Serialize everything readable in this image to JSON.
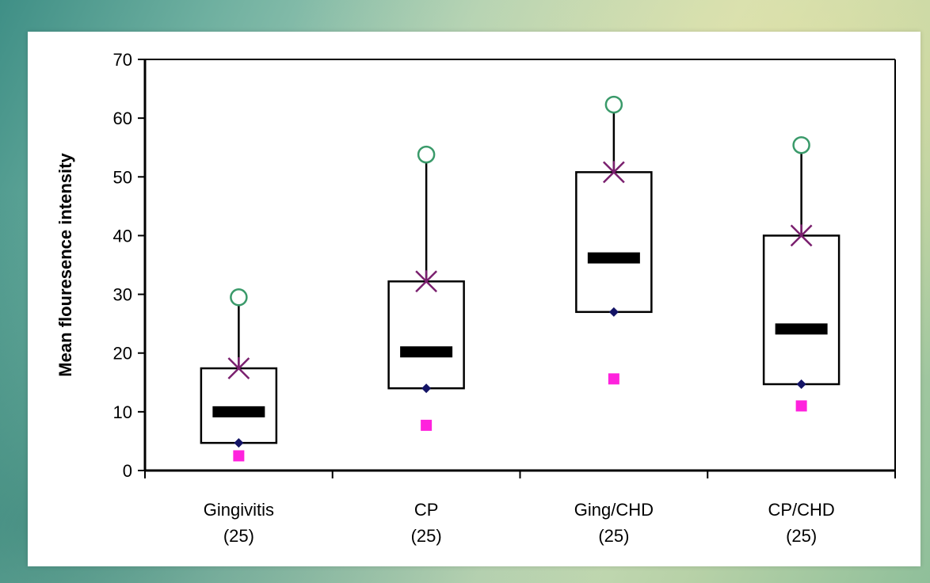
{
  "chart_data": {
    "type": "boxplot",
    "title": "",
    "xlabel": "",
    "ylabel": "Mean flouresence intensity",
    "ylim": [
      0,
      70
    ],
    "yticks": [
      0,
      10,
      20,
      30,
      40,
      50,
      60,
      70
    ],
    "grid": false,
    "categories": [
      {
        "name": "Gingivitis",
        "n": "(25)"
      },
      {
        "name": "CP",
        "n": "(25)"
      },
      {
        "name": "Ging/CHD",
        "n": "(25)"
      },
      {
        "name": "CP/CHD",
        "n": "(25)"
      }
    ],
    "boxes": [
      {
        "min": 2.5,
        "low_whisker": 4.7,
        "q1": 4.7,
        "median": 10,
        "q3": 17.4,
        "p90": 17.4,
        "max": 29.5
      },
      {
        "min": 7.7,
        "low_whisker": 14,
        "q1": 14,
        "median": 20.2,
        "q3": 32.2,
        "p90": 32.2,
        "max": 53.8
      },
      {
        "min": 15.6,
        "low_whisker": 27,
        "q1": 27,
        "median": 36.2,
        "q3": 50.8,
        "p90": 50.8,
        "max": 62.3
      },
      {
        "min": 11,
        "low_whisker": 14.7,
        "q1": 14.7,
        "median": 24.1,
        "q3": 40,
        "p90": 40,
        "max": 55.4
      }
    ],
    "colors": {
      "box": "#000000",
      "median": "#000000",
      "max_marker": "#3a9a6a",
      "upper_marker": "#7a1f6e",
      "lower_marker": "#141466",
      "min_marker": "#ff22dd"
    }
  }
}
